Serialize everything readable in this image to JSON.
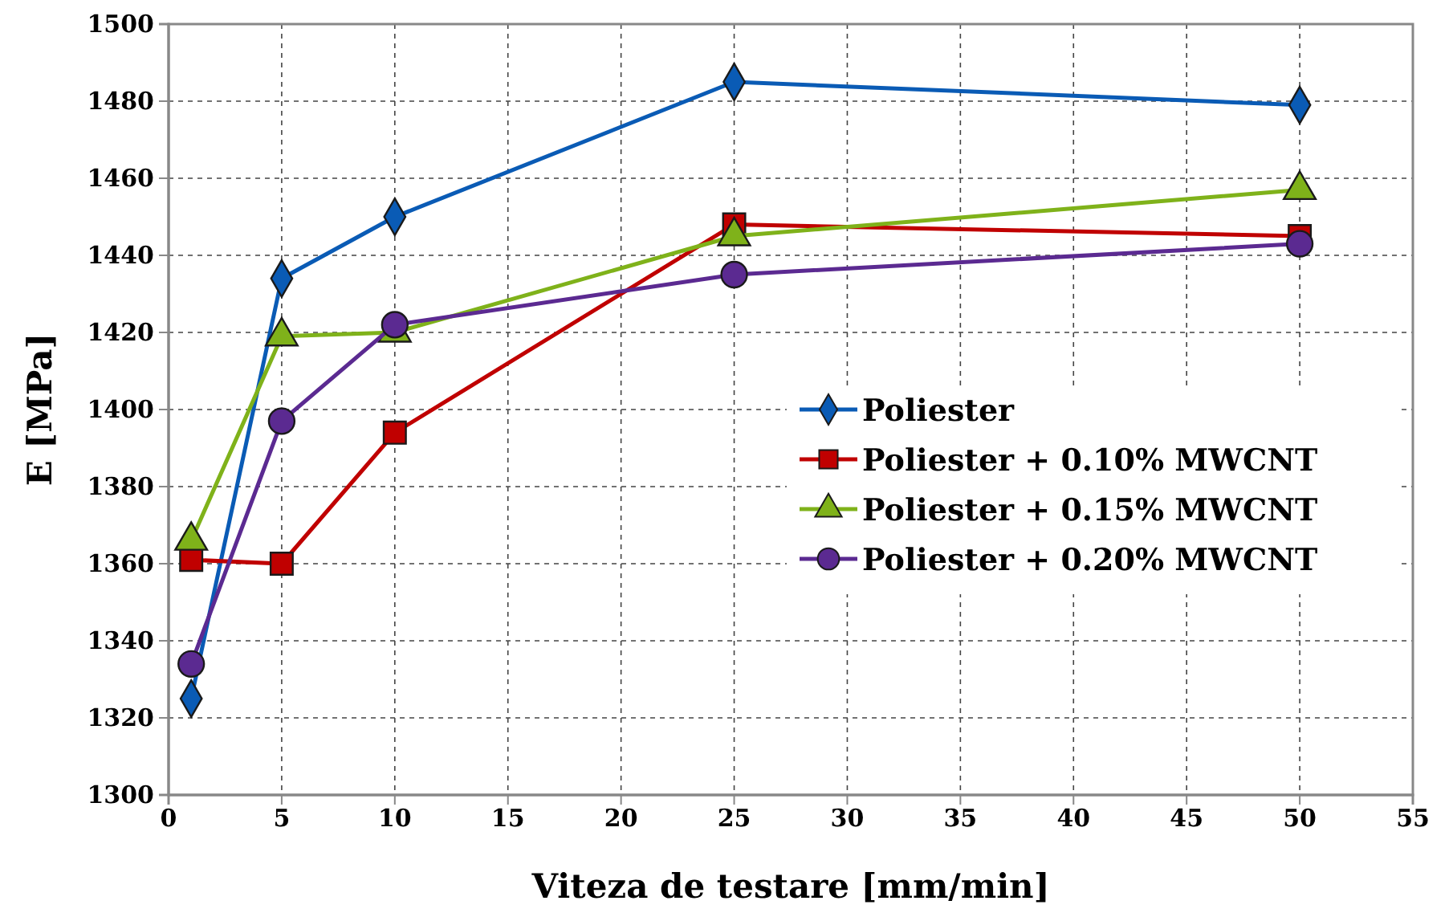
{
  "chart_data": {
    "type": "line",
    "xlabel": "Viteza de testare [mm/min]",
    "ylabel": "E [MPa]",
    "x": [
      1,
      5,
      10,
      25,
      50
    ],
    "series": [
      {
        "name": "Poliester",
        "color": "#0a5bb5",
        "marker": "diamond",
        "values": [
          1325,
          1434,
          1450,
          1485,
          1479
        ]
      },
      {
        "name": "Poliester + 0.10% MWCNT",
        "color": "#c00000",
        "marker": "square",
        "values": [
          1361,
          1360,
          1394,
          1448,
          1445
        ]
      },
      {
        "name": "Poliester + 0.15% MWCNT",
        "color": "#7fb21a",
        "marker": "triangle",
        "values": [
          1366,
          1419,
          1420,
          1445,
          1457
        ]
      },
      {
        "name": "Poliester + 0.20% MWCNT",
        "color": "#5b2a91",
        "marker": "circle",
        "values": [
          1334,
          1397,
          1422,
          1435,
          1443
        ]
      }
    ],
    "xlim": [
      0,
      55
    ],
    "xticks": [
      0,
      5,
      10,
      15,
      20,
      25,
      30,
      35,
      40,
      45,
      50,
      55
    ],
    "ylim": [
      1300,
      1500
    ],
    "yticks": [
      1300,
      1320,
      1340,
      1360,
      1380,
      1400,
      1420,
      1440,
      1460,
      1480,
      1500
    ],
    "grid": true,
    "legend": "right",
    "line_style": "solid"
  }
}
